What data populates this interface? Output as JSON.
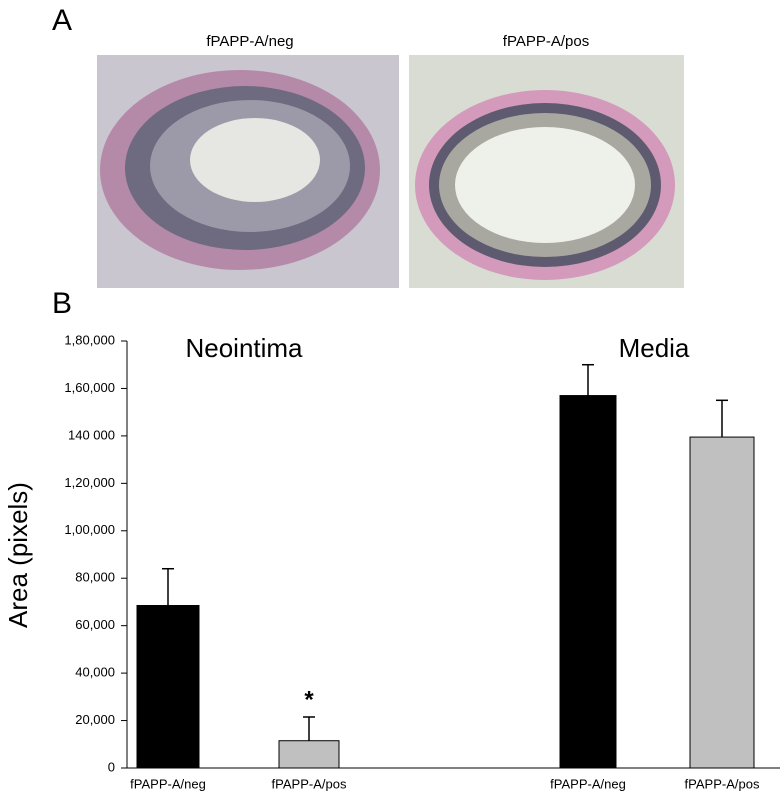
{
  "panels": {
    "a": "A",
    "b": "B"
  },
  "images": [
    {
      "title": "fPAPP-A/neg"
    },
    {
      "title": "fPAPP-A/pos"
    }
  ],
  "chart_data": {
    "type": "bar",
    "ylabel": "Area (pixels)",
    "groups": [
      "Neointima",
      "Media"
    ],
    "categories": [
      "fPAPP-A/neg",
      "fPAPP-A/pos",
      "fPAPP-A/neg",
      "fPAPP-A/pos"
    ],
    "values": [
      68500,
      11500,
      157000,
      139500
    ],
    "errors": [
      15500,
      10000,
      13000,
      15500
    ],
    "colors": [
      "#000000",
      "#c0c0c0",
      "#000000",
      "#c0c0c0"
    ],
    "annotation": "*",
    "ylim": [
      0,
      180000
    ],
    "yticks": [
      0,
      {
        "value": 20000,
        "label": "20,000"
      },
      {
        "value": 40000,
        "label": "40,000"
      },
      {
        "value": 60000,
        "label": "60,000"
      },
      {
        "value": 80000,
        "label": "80,000"
      },
      {
        "value": 100000,
        "label": "1,00,000"
      },
      {
        "value": 120000,
        "label": "1,20,000"
      },
      {
        "value": 140000,
        "label": "140 000"
      },
      {
        "value": 160000,
        "label": "1,60,000"
      },
      {
        "value": 180000,
        "label": "1,80,000"
      }
    ],
    "grid": false
  }
}
